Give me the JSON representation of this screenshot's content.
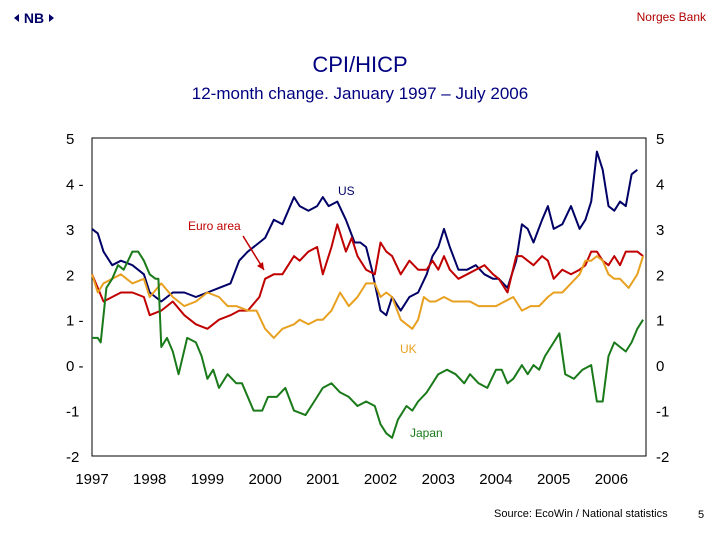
{
  "header": {
    "brand": "Norges Bank",
    "logo_text": "NB"
  },
  "footer": {
    "source": "Source: EcoWin / National statistics",
    "page_number": "5"
  },
  "chart_data": {
    "type": "line",
    "title": "CPI/HICP",
    "subtitle": "12-month change. January 1997 – July 2006",
    "xlabel": "",
    "ylabel": "",
    "xlim": [
      1997.0,
      2006.6
    ],
    "ylim": [
      -2,
      5
    ],
    "x_ticks": [
      "1997",
      "1998",
      "1999",
      "2000",
      "2001",
      "2002",
      "2003",
      "2004",
      "2005",
      "2006"
    ],
    "y_ticks": [
      "5",
      "4",
      "3",
      "2",
      "1",
      "0",
      "-1",
      "-2"
    ],
    "y_ticks_left_display": [
      "5",
      "4 -",
      "3",
      "2",
      "1 -",
      "0 -",
      "-1",
      "-2"
    ],
    "grid": false,
    "series": [
      {
        "name": "US",
        "color": "#000066",
        "points": [
          [
            1997.0,
            3.0
          ],
          [
            1997.1,
            2.9
          ],
          [
            1997.2,
            2.5
          ],
          [
            1997.35,
            2.2
          ],
          [
            1997.5,
            2.3
          ],
          [
            1997.7,
            2.2
          ],
          [
            1997.9,
            2.0
          ],
          [
            1998.0,
            1.6
          ],
          [
            1998.2,
            1.4
          ],
          [
            1998.4,
            1.6
          ],
          [
            1998.6,
            1.6
          ],
          [
            1998.8,
            1.5
          ],
          [
            1999.0,
            1.6
          ],
          [
            1999.2,
            1.7
          ],
          [
            1999.4,
            1.8
          ],
          [
            1999.55,
            2.3
          ],
          [
            1999.7,
            2.5
          ],
          [
            1999.9,
            2.7
          ],
          [
            2000.0,
            2.8
          ],
          [
            2000.15,
            3.2
          ],
          [
            2000.3,
            3.1
          ],
          [
            2000.5,
            3.7
          ],
          [
            2000.6,
            3.5
          ],
          [
            2000.75,
            3.4
          ],
          [
            2000.9,
            3.5
          ],
          [
            2001.0,
            3.7
          ],
          [
            2001.1,
            3.5
          ],
          [
            2001.25,
            3.6
          ],
          [
            2001.4,
            3.2
          ],
          [
            2001.55,
            2.7
          ],
          [
            2001.65,
            2.7
          ],
          [
            2001.75,
            2.6
          ],
          [
            2001.85,
            2.1
          ],
          [
            2002.0,
            1.2
          ],
          [
            2002.1,
            1.1
          ],
          [
            2002.2,
            1.5
          ],
          [
            2002.35,
            1.2
          ],
          [
            2002.5,
            1.5
          ],
          [
            2002.65,
            1.6
          ],
          [
            2002.8,
            2.0
          ],
          [
            2002.9,
            2.4
          ],
          [
            2003.0,
            2.6
          ],
          [
            2003.1,
            3.0
          ],
          [
            2003.2,
            2.6
          ],
          [
            2003.35,
            2.1
          ],
          [
            2003.5,
            2.1
          ],
          [
            2003.65,
            2.2
          ],
          [
            2003.8,
            2.0
          ],
          [
            2003.95,
            1.9
          ],
          [
            2004.05,
            1.9
          ],
          [
            2004.2,
            1.7
          ],
          [
            2004.35,
            2.3
          ],
          [
            2004.45,
            3.1
          ],
          [
            2004.55,
            3.0
          ],
          [
            2004.65,
            2.7
          ],
          [
            2004.8,
            3.2
          ],
          [
            2004.9,
            3.5
          ],
          [
            2005.0,
            3.0
          ],
          [
            2005.15,
            3.1
          ],
          [
            2005.3,
            3.5
          ],
          [
            2005.45,
            3.0
          ],
          [
            2005.55,
            3.2
          ],
          [
            2005.65,
            3.6
          ],
          [
            2005.75,
            4.7
          ],
          [
            2005.85,
            4.3
          ],
          [
            2005.95,
            3.5
          ],
          [
            2006.05,
            3.4
          ],
          [
            2006.15,
            3.6
          ],
          [
            2006.25,
            3.5
          ],
          [
            2006.35,
            4.2
          ],
          [
            2006.45,
            4.3
          ]
        ]
      },
      {
        "name": "Euro area",
        "color": "#c00000",
        "points": [
          [
            1997.0,
            2.0
          ],
          [
            1997.1,
            1.7
          ],
          [
            1997.2,
            1.4
          ],
          [
            1997.35,
            1.5
          ],
          [
            1997.5,
            1.6
          ],
          [
            1997.7,
            1.6
          ],
          [
            1997.9,
            1.5
          ],
          [
            1998.0,
            1.1
          ],
          [
            1998.2,
            1.2
          ],
          [
            1998.4,
            1.4
          ],
          [
            1998.6,
            1.1
          ],
          [
            1998.8,
            0.9
          ],
          [
            1999.0,
            0.8
          ],
          [
            1999.2,
            1.0
          ],
          [
            1999.4,
            1.1
          ],
          [
            1999.55,
            1.2
          ],
          [
            1999.7,
            1.2
          ],
          [
            1999.9,
            1.5
          ],
          [
            2000.0,
            1.9
          ],
          [
            2000.15,
            2.0
          ],
          [
            2000.3,
            2.0
          ],
          [
            2000.5,
            2.4
          ],
          [
            2000.6,
            2.3
          ],
          [
            2000.75,
            2.5
          ],
          [
            2000.9,
            2.6
          ],
          [
            2001.0,
            2.0
          ],
          [
            2001.15,
            2.6
          ],
          [
            2001.25,
            3.1
          ],
          [
            2001.4,
            2.5
          ],
          [
            2001.5,
            2.8
          ],
          [
            2001.6,
            2.4
          ],
          [
            2001.75,
            2.1
          ],
          [
            2001.9,
            2.0
          ],
          [
            2002.0,
            2.7
          ],
          [
            2002.1,
            2.5
          ],
          [
            2002.2,
            2.4
          ],
          [
            2002.35,
            2.0
          ],
          [
            2002.5,
            2.3
          ],
          [
            2002.65,
            2.1
          ],
          [
            2002.8,
            2.1
          ],
          [
            2002.9,
            2.3
          ],
          [
            2003.0,
            2.1
          ],
          [
            2003.1,
            2.4
          ],
          [
            2003.2,
            2.1
          ],
          [
            2003.35,
            1.9
          ],
          [
            2003.5,
            2.0
          ],
          [
            2003.65,
            2.1
          ],
          [
            2003.8,
            2.2
          ],
          [
            2003.95,
            2.0
          ],
          [
            2004.05,
            1.9
          ],
          [
            2004.2,
            1.6
          ],
          [
            2004.35,
            2.4
          ],
          [
            2004.45,
            2.4
          ],
          [
            2004.55,
            2.3
          ],
          [
            2004.65,
            2.2
          ],
          [
            2004.8,
            2.4
          ],
          [
            2004.9,
            2.3
          ],
          [
            2005.0,
            1.9
          ],
          [
            2005.15,
            2.1
          ],
          [
            2005.3,
            2.0
          ],
          [
            2005.45,
            2.1
          ],
          [
            2005.55,
            2.2
          ],
          [
            2005.65,
            2.5
          ],
          [
            2005.75,
            2.5
          ],
          [
            2005.85,
            2.3
          ],
          [
            2005.95,
            2.2
          ],
          [
            2006.05,
            2.4
          ],
          [
            2006.15,
            2.2
          ],
          [
            2006.25,
            2.5
          ],
          [
            2006.35,
            2.5
          ],
          [
            2006.45,
            2.5
          ],
          [
            2006.55,
            2.4
          ]
        ]
      },
      {
        "name": "UK",
        "color": "#e8a020",
        "points": [
          [
            1997.0,
            2.0
          ],
          [
            1997.1,
            1.6
          ],
          [
            1997.2,
            1.8
          ],
          [
            1997.35,
            1.9
          ],
          [
            1997.5,
            2.0
          ],
          [
            1997.7,
            1.8
          ],
          [
            1997.9,
            1.9
          ],
          [
            1998.0,
            1.5
          ],
          [
            1998.2,
            1.8
          ],
          [
            1998.4,
            1.5
          ],
          [
            1998.6,
            1.3
          ],
          [
            1998.8,
            1.4
          ],
          [
            1999.0,
            1.6
          ],
          [
            1999.2,
            1.5
          ],
          [
            1999.35,
            1.3
          ],
          [
            1999.5,
            1.3
          ],
          [
            1999.7,
            1.2
          ],
          [
            1999.85,
            1.2
          ],
          [
            2000.0,
            0.8
          ],
          [
            2000.15,
            0.6
          ],
          [
            2000.3,
            0.8
          ],
          [
            2000.5,
            0.9
          ],
          [
            2000.6,
            1.0
          ],
          [
            2000.75,
            0.9
          ],
          [
            2000.9,
            1.0
          ],
          [
            2001.0,
            1.0
          ],
          [
            2001.15,
            1.2
          ],
          [
            2001.3,
            1.6
          ],
          [
            2001.45,
            1.3
          ],
          [
            2001.6,
            1.5
          ],
          [
            2001.75,
            1.8
          ],
          [
            2001.9,
            1.8
          ],
          [
            2002.0,
            1.5
          ],
          [
            2002.1,
            1.6
          ],
          [
            2002.2,
            1.5
          ],
          [
            2002.35,
            1.0
          ],
          [
            2002.45,
            0.9
          ],
          [
            2002.55,
            0.8
          ],
          [
            2002.65,
            1.0
          ],
          [
            2002.75,
            1.5
          ],
          [
            2002.85,
            1.4
          ],
          [
            2002.95,
            1.4
          ],
          [
            2003.1,
            1.5
          ],
          [
            2003.25,
            1.4
          ],
          [
            2003.4,
            1.4
          ],
          [
            2003.55,
            1.4
          ],
          [
            2003.7,
            1.3
          ],
          [
            2003.85,
            1.3
          ],
          [
            2004.0,
            1.3
          ],
          [
            2004.15,
            1.4
          ],
          [
            2004.3,
            1.5
          ],
          [
            2004.45,
            1.2
          ],
          [
            2004.6,
            1.3
          ],
          [
            2004.75,
            1.3
          ],
          [
            2004.9,
            1.5
          ],
          [
            2005.0,
            1.6
          ],
          [
            2005.15,
            1.6
          ],
          [
            2005.3,
            1.8
          ],
          [
            2005.45,
            2.0
          ],
          [
            2005.55,
            2.3
          ],
          [
            2005.65,
            2.3
          ],
          [
            2005.75,
            2.4
          ],
          [
            2005.85,
            2.3
          ],
          [
            2005.95,
            2.0
          ],
          [
            2006.05,
            1.9
          ],
          [
            2006.15,
            1.9
          ],
          [
            2006.3,
            1.7
          ],
          [
            2006.45,
            2.0
          ],
          [
            2006.55,
            2.4
          ]
        ]
      },
      {
        "name": "Japan",
        "color": "#1a7a1a",
        "points": [
          [
            1997.0,
            0.6
          ],
          [
            1997.1,
            0.6
          ],
          [
            1997.15,
            0.5
          ],
          [
            1997.25,
            1.7
          ],
          [
            1997.35,
            1.9
          ],
          [
            1997.45,
            2.2
          ],
          [
            1997.55,
            2.1
          ],
          [
            1997.7,
            2.5
          ],
          [
            1997.8,
            2.5
          ],
          [
            1997.9,
            2.3
          ],
          [
            1998.0,
            2.0
          ],
          [
            1998.1,
            1.9
          ],
          [
            1998.15,
            1.9
          ],
          [
            1998.2,
            0.4
          ],
          [
            1998.3,
            0.6
          ],
          [
            1998.4,
            0.3
          ],
          [
            1998.5,
            -0.2
          ],
          [
            1998.65,
            0.6
          ],
          [
            1998.8,
            0.5
          ],
          [
            1998.9,
            0.2
          ],
          [
            1999.0,
            -0.3
          ],
          [
            1999.1,
            -0.1
          ],
          [
            1999.2,
            -0.5
          ],
          [
            1999.35,
            -0.2
          ],
          [
            1999.5,
            -0.4
          ],
          [
            1999.6,
            -0.4
          ],
          [
            1999.8,
            -1.0
          ],
          [
            1999.95,
            -1.0
          ],
          [
            2000.05,
            -0.7
          ],
          [
            2000.2,
            -0.7
          ],
          [
            2000.35,
            -0.5
          ],
          [
            2000.5,
            -1.0
          ],
          [
            2000.7,
            -1.1
          ],
          [
            2000.85,
            -0.8
          ],
          [
            2001.0,
            -0.5
          ],
          [
            2001.15,
            -0.4
          ],
          [
            2001.3,
            -0.6
          ],
          [
            2001.45,
            -0.7
          ],
          [
            2001.6,
            -0.9
          ],
          [
            2001.75,
            -0.8
          ],
          [
            2001.9,
            -0.9
          ],
          [
            2002.0,
            -1.3
          ],
          [
            2002.1,
            -1.5
          ],
          [
            2002.2,
            -1.6
          ],
          [
            2002.3,
            -1.2
          ],
          [
            2002.45,
            -0.9
          ],
          [
            2002.55,
            -1.0
          ],
          [
            2002.65,
            -0.8
          ],
          [
            2002.8,
            -0.6
          ],
          [
            2002.9,
            -0.4
          ],
          [
            2003.0,
            -0.2
          ],
          [
            2003.15,
            -0.1
          ],
          [
            2003.3,
            -0.2
          ],
          [
            2003.45,
            -0.4
          ],
          [
            2003.55,
            -0.2
          ],
          [
            2003.7,
            -0.4
          ],
          [
            2003.85,
            -0.5
          ],
          [
            2004.0,
            -0.1
          ],
          [
            2004.1,
            -0.1
          ],
          [
            2004.2,
            -0.4
          ],
          [
            2004.3,
            -0.3
          ],
          [
            2004.45,
            0.0
          ],
          [
            2004.55,
            -0.2
          ],
          [
            2004.65,
            0.0
          ],
          [
            2004.75,
            -0.1
          ],
          [
            2004.85,
            0.2
          ],
          [
            2005.0,
            0.5
          ],
          [
            2005.1,
            0.7
          ],
          [
            2005.2,
            -0.2
          ],
          [
            2005.35,
            -0.3
          ],
          [
            2005.5,
            -0.1
          ],
          [
            2005.65,
            0.0
          ],
          [
            2005.75,
            -0.8
          ],
          [
            2005.85,
            -0.8
          ],
          [
            2005.95,
            0.2
          ],
          [
            2006.05,
            0.5
          ],
          [
            2006.15,
            0.4
          ],
          [
            2006.25,
            0.3
          ],
          [
            2006.35,
            0.5
          ],
          [
            2006.45,
            0.8
          ],
          [
            2006.55,
            1.0
          ]
        ]
      }
    ],
    "annotations": [
      {
        "text": "US",
        "series": "US"
      },
      {
        "text": "Euro area",
        "series": "Euro area"
      },
      {
        "text": "UK",
        "series": "UK"
      },
      {
        "text": "Japan",
        "series": "Japan"
      }
    ]
  }
}
